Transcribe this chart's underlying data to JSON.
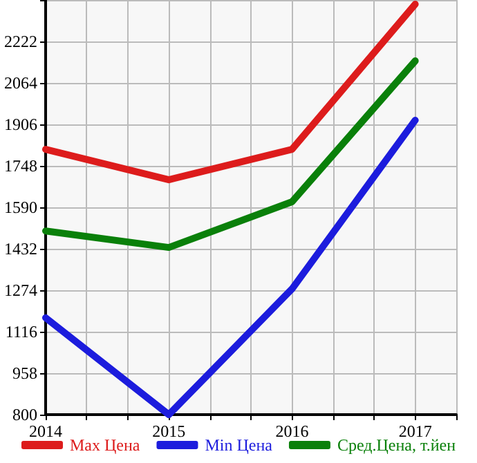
{
  "chart_data": {
    "type": "line",
    "x": [
      2014,
      2015,
      2016,
      2017
    ],
    "series": [
      {
        "name": "Max Цена",
        "color": "#dd1c1c",
        "values": [
          1811,
          1695,
          1811,
          2364
        ]
      },
      {
        "name": "Min Цена",
        "color": "#1c1cdd",
        "values": [
          1169,
          800,
          1279,
          1922
        ]
      },
      {
        "name": "Сред.Цена, т.йен",
        "color": "#0a800a",
        "values": [
          1500,
          1437,
          1611,
          2148
        ]
      }
    ],
    "xlim": [
      2014,
      2017.333
    ],
    "xticks": [
      2014,
      {
        "value": 2014.333,
        "label": null
      },
      {
        "value": 2014.667,
        "label": null
      },
      2015,
      {
        "value": 2015.333,
        "label": null
      },
      {
        "value": 2015.667,
        "label": null
      },
      2016,
      {
        "value": 2016.333,
        "label": null
      },
      {
        "value": 2016.667,
        "label": null
      },
      2017,
      {
        "value": 2017.333,
        "label": null
      }
    ],
    "ylim": [
      800,
      2380
    ],
    "yticks": [
      800,
      958,
      1116,
      1274,
      1432,
      1590,
      1748,
      1906,
      2064,
      2222,
      {
        "value": 2380,
        "label": null
      }
    ],
    "grid": true,
    "legend": "bottom",
    "marker": "none",
    "line_style": "solid"
  }
}
